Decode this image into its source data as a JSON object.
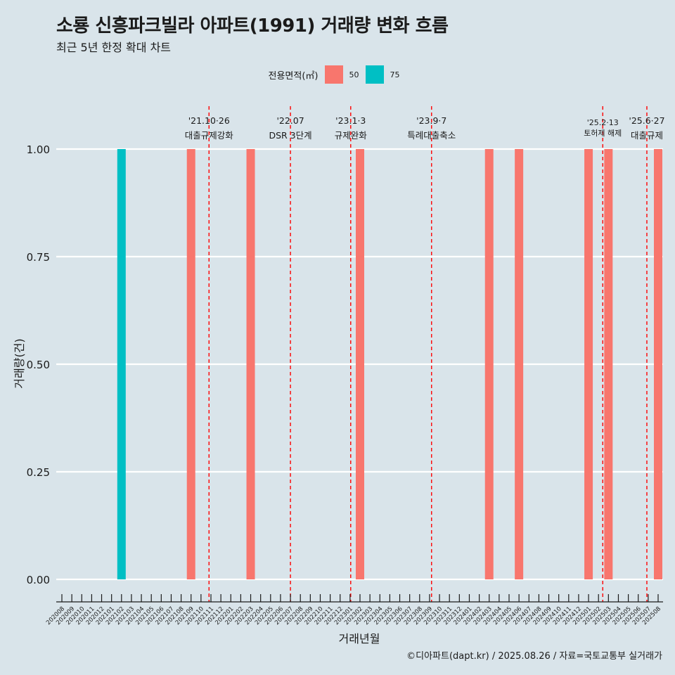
{
  "title": "소룡 신흥파크빌라 아파트(1991) 거래량 변화 흐름",
  "subtitle": "최근 5년 한정 확대 차트",
  "caption": "©디아파트(dapt.kr) / 2025.08.26 / 자료=국토교통부 실거래가",
  "legend": {
    "title": "전용면적(㎡)",
    "items": [
      {
        "label": "50",
        "color": "#f8766d"
      },
      {
        "label": "75",
        "color": "#00bfc4"
      }
    ]
  },
  "chart_data": {
    "type": "bar",
    "xlabel": "거래년월",
    "ylabel": "거래량(건)",
    "ylim": [
      0,
      1
    ],
    "yticks": [
      "0.00",
      "0.25",
      "0.50",
      "0.75",
      "1.00"
    ],
    "categories": [
      "202008",
      "202009",
      "202010",
      "202011",
      "202012",
      "202101",
      "202102",
      "202103",
      "202104",
      "202105",
      "202106",
      "202107",
      "202108",
      "202109",
      "202110",
      "202111",
      "202112",
      "202201",
      "202202",
      "202203",
      "202204",
      "202205",
      "202206",
      "202207",
      "202208",
      "202209",
      "202210",
      "202211",
      "202212",
      "202301",
      "202302",
      "202303",
      "202304",
      "202305",
      "202306",
      "202307",
      "202308",
      "202309",
      "202310",
      "202311",
      "202312",
      "202401",
      "202402",
      "202403",
      "202404",
      "202405",
      "202406",
      "202407",
      "202408",
      "202409",
      "202410",
      "202411",
      "202412",
      "202501",
      "202502",
      "202503",
      "202504",
      "202505",
      "202506",
      "202507",
      "202508"
    ],
    "bars": [
      {
        "x": "202102",
        "value": 1,
        "series": "75"
      },
      {
        "x": "202109",
        "value": 1,
        "series": "50"
      },
      {
        "x": "202203",
        "value": 1,
        "series": "50"
      },
      {
        "x": "202302",
        "value": 1,
        "series": "50"
      },
      {
        "x": "202403",
        "value": 1,
        "series": "50"
      },
      {
        "x": "202406",
        "value": 1,
        "series": "50"
      },
      {
        "x": "202501",
        "value": 1,
        "series": "50"
      },
      {
        "x": "202503",
        "value": 1,
        "series": "50"
      },
      {
        "x": "202508",
        "value": 1,
        "series": "50"
      }
    ],
    "events": [
      {
        "date": "2021-10-26",
        "line1": "'21.10·26",
        "line2": "대출규제강화",
        "raised": false
      },
      {
        "date": "2022-07-01",
        "line1": "'22.07",
        "line2": "DSR 3단계",
        "raised": false
      },
      {
        "date": "2023-01-03",
        "line1": "'23.1·3",
        "line2": "규제완화",
        "raised": false
      },
      {
        "date": "2023-09-07",
        "line1": "'23.9·7",
        "line2": "특례대출축소",
        "raised": false
      },
      {
        "date": "2025-02-13",
        "line1": "'25.2·13",
        "line2": "토허제 해제",
        "raised": true
      },
      {
        "date": "2025-06-27",
        "line1": "'25.6·27",
        "line2": "대출규제",
        "raised": false
      }
    ],
    "event_line_color": "#ff0000",
    "grid": true
  }
}
